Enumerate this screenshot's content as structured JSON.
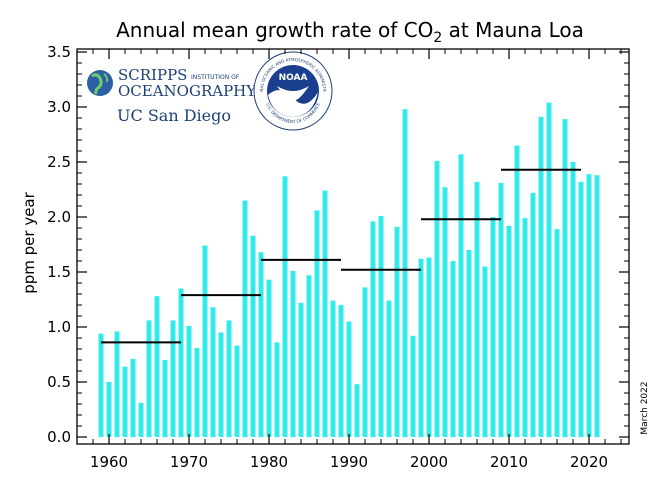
{
  "chart_data": {
    "type": "bar",
    "title": "Annual mean growth rate of CO",
    "title_sub": "2",
    "title_end": " at Mauna Loa",
    "ylabel": "ppm per year",
    "xlabel": "",
    "xlim": [
      1956,
      2025
    ],
    "ylim": [
      0,
      3.5
    ],
    "x_ticks": [
      1960,
      1970,
      1980,
      1990,
      2000,
      2010,
      2020
    ],
    "y_ticks": [
      0.0,
      0.5,
      1.0,
      1.5,
      2.0,
      2.5,
      3.0,
      3.5
    ],
    "x_tick_labels": [
      "1960",
      "1970",
      "1980",
      "1990",
      "2000",
      "2010",
      "2020"
    ],
    "y_tick_labels": [
      "0.0",
      "0.5",
      "1.0",
      "1.5",
      "2.0",
      "2.5",
      "3.0",
      "3.5"
    ],
    "bar_color": "#33eaea",
    "decade_line_color": "#000000",
    "grid": false,
    "years": [
      1959,
      1960,
      1961,
      1962,
      1963,
      1964,
      1965,
      1966,
      1967,
      1968,
      1969,
      1970,
      1971,
      1972,
      1973,
      1974,
      1975,
      1976,
      1977,
      1978,
      1979,
      1980,
      1981,
      1982,
      1983,
      1984,
      1985,
      1986,
      1987,
      1988,
      1989,
      1990,
      1991,
      1992,
      1993,
      1994,
      1995,
      1996,
      1997,
      1998,
      1999,
      2000,
      2001,
      2002,
      2003,
      2004,
      2005,
      2006,
      2007,
      2008,
      2009,
      2010,
      2011,
      2012,
      2013,
      2014,
      2015,
      2016,
      2017,
      2018,
      2019,
      2020,
      2021
    ],
    "values": [
      0.94,
      0.5,
      0.96,
      0.64,
      0.71,
      0.31,
      1.06,
      1.28,
      0.7,
      1.06,
      1.35,
      1.01,
      0.81,
      1.74,
      1.18,
      0.95,
      1.06,
      0.83,
      2.15,
      1.83,
      1.68,
      1.43,
      0.86,
      2.37,
      1.51,
      1.22,
      1.47,
      2.06,
      2.24,
      1.24,
      1.2,
      1.05,
      0.48,
      1.36,
      1.96,
      2.01,
      1.24,
      1.91,
      2.98,
      0.92,
      1.62,
      1.63,
      2.51,
      2.27,
      1.6,
      2.57,
      1.7,
      2.32,
      1.55,
      2.0,
      2.31,
      1.92,
      2.65,
      1.99,
      2.22,
      2.91,
      3.04,
      1.89,
      2.89,
      2.5,
      2.32,
      2.39,
      2.38
    ],
    "decade_means": [
      {
        "x": [
          1959,
          1969
        ],
        "value": 0.86
      },
      {
        "x": [
          1969,
          1979
        ],
        "value": 1.29
      },
      {
        "x": [
          1979,
          1989
        ],
        "value": 1.61
      },
      {
        "x": [
          1989,
          1999
        ],
        "value": 1.52
      },
      {
        "x": [
          1999,
          2009
        ],
        "value": 1.98
      },
      {
        "x": [
          2009,
          2019
        ],
        "value": 2.43
      }
    ],
    "date_note": "March 2022"
  },
  "logos": {
    "scripps_line1": "SCRIPPS",
    "scripps_small": "INSTITUTION OF",
    "scripps_line2": "OCEANOGRAPHY",
    "ucsd": "UC San Diego",
    "noaa_word": "NOAA",
    "noaa_ring_top": "NATIONAL OCEANIC AND ATMOSPHERIC ADMINISTRATION",
    "noaa_ring_bottom": "U.S. DEPARTMENT OF COMMERCE"
  }
}
